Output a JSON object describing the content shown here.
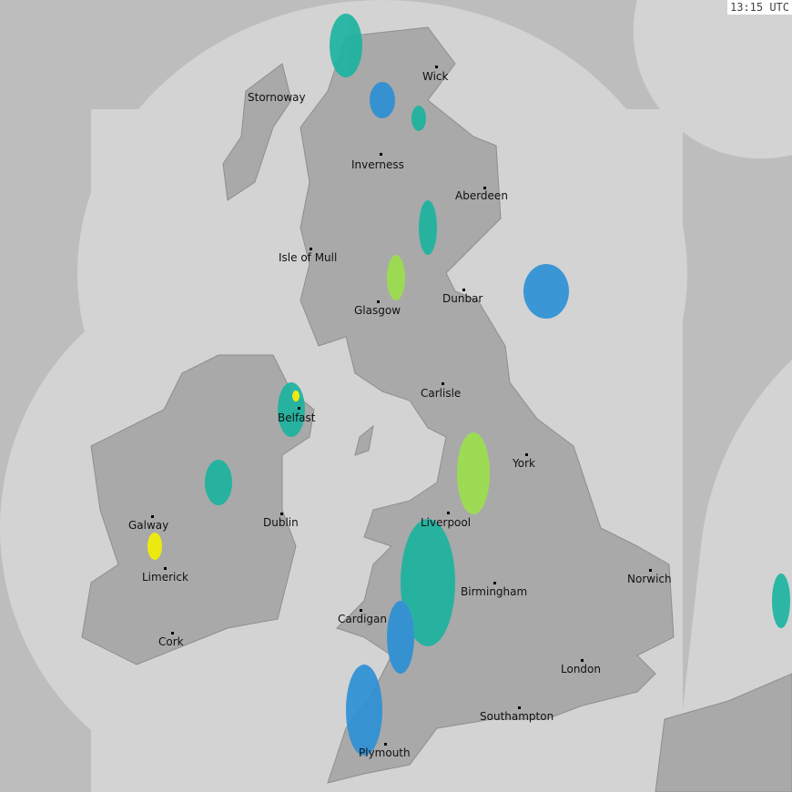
{
  "timestamp": "13:15 UTC",
  "colors": {
    "background": "#bdbdbd",
    "coverage": "#d3d3d3",
    "land": "#a9a9a9",
    "rain_light": "#2a8fd6",
    "rain_moderate": "#19b3a0",
    "rain_heavy": "#9be04a",
    "rain_intense": "#f4f000"
  },
  "cities": [
    {
      "name": "Stornoway",
      "dot": false
    },
    {
      "name": "Wick"
    },
    {
      "name": "Inverness"
    },
    {
      "name": "Aberdeen"
    },
    {
      "name": "Isle of Mull"
    },
    {
      "name": "Glasgow"
    },
    {
      "name": "Dunbar"
    },
    {
      "name": "Carlisle"
    },
    {
      "name": "Belfast"
    },
    {
      "name": "York"
    },
    {
      "name": "Galway"
    },
    {
      "name": "Dublin"
    },
    {
      "name": "Liverpool"
    },
    {
      "name": "Limerick"
    },
    {
      "name": "Norwich"
    },
    {
      "name": "Birmingham"
    },
    {
      "name": "Cardigan"
    },
    {
      "name": "Cork"
    },
    {
      "name": "London"
    },
    {
      "name": "Southampton"
    },
    {
      "name": "Plymouth"
    }
  ]
}
